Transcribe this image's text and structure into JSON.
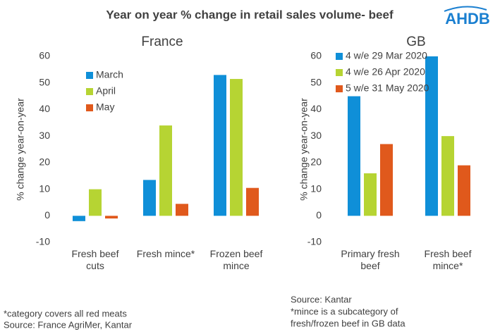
{
  "title": "Year on year % change in retail sales volume- beef",
  "logo": "AHDB",
  "chart_data": [
    {
      "type": "bar",
      "title": "France",
      "ylabel": "% change year-on-year",
      "categories": [
        "Fresh beef cuts",
        "Fresh mince*",
        "Frozen beef mince"
      ],
      "series": [
        {
          "name": "March",
          "color": "#0f8fd8",
          "values": [
            -2,
            13.5,
            53
          ]
        },
        {
          "name": "April",
          "color": "#b6d433",
          "values": [
            10,
            34,
            51.5
          ]
        },
        {
          "name": "May",
          "color": "#e0591c",
          "values": [
            -1,
            4.5,
            10.5
          ]
        }
      ],
      "ylim": [
        -10,
        60
      ],
      "yticks": [
        -10,
        0,
        10,
        20,
        30,
        40,
        50,
        60
      ],
      "grid": false,
      "legend": "upper left"
    },
    {
      "type": "bar",
      "title": "GB",
      "ylabel": "% change year-on-year",
      "categories": [
        "Primary fresh beef",
        "Fresh beef mince*"
      ],
      "series": [
        {
          "name": "4 w/e 29 Mar 2020",
          "color": "#0f8fd8",
          "values": [
            45,
            60
          ]
        },
        {
          "name": "4 w/e 26 Apr 2020",
          "color": "#b6d433",
          "values": [
            16,
            30
          ]
        },
        {
          "name": "5 w/e 31 May 2020",
          "color": "#e0591c",
          "values": [
            27,
            19
          ]
        }
      ],
      "ylim": [
        -10,
        60
      ],
      "yticks": [
        -10,
        0,
        10,
        20,
        30,
        40,
        50,
        60
      ],
      "grid": false,
      "legend": "upper left"
    }
  ],
  "notes_left": [
    "*category covers all red meats",
    "Source: France AgriMer, Kantar"
  ],
  "notes_right": [
    "Source: Kantar",
    "*mince is a subcategory of",
    "fresh/frozen beef in GB data"
  ]
}
